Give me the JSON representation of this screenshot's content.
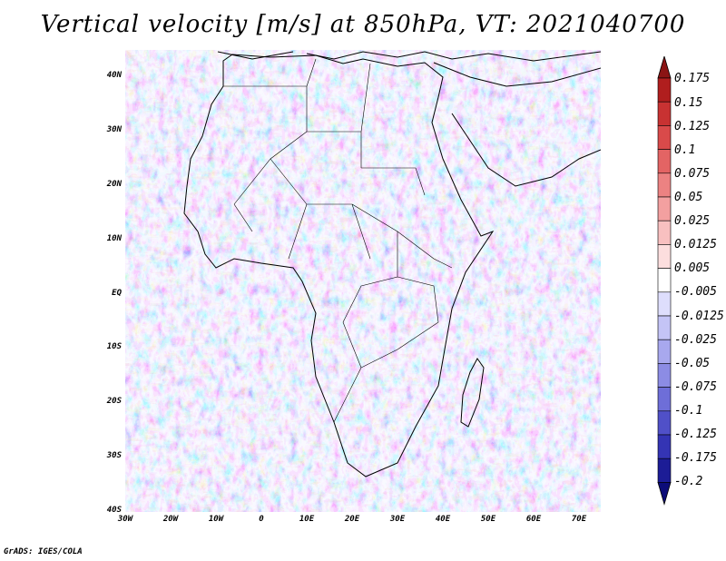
{
  "title": "Vertical velocity [m/s] at 850hPa, VT: 2021040700",
  "credit": "GrADS: IGES/COLA",
  "map": {
    "region": "Africa",
    "variable": "vertical velocity",
    "lat_labels": [
      "40N",
      "30N",
      "20N",
      "10N",
      "EQ",
      "10S",
      "20S",
      "30S",
      "40S"
    ],
    "lon_labels": [
      "30W",
      "20W",
      "10W",
      "0",
      "10E",
      "20E",
      "30E",
      "40E",
      "50E",
      "60E",
      "70E"
    ],
    "lat_range": [
      -40,
      45
    ],
    "lon_range": [
      -30,
      75
    ]
  },
  "colorbar": {
    "labels": [
      "0.175",
      "0.15",
      "0.125",
      "0.1",
      "0.075",
      "0.05",
      "0.025",
      "0.0125",
      "0.005",
      "-0.005",
      "-0.0125",
      "-0.025",
      "-0.05",
      "-0.075",
      "-0.1",
      "-0.125",
      "-0.175",
      "-0.2"
    ],
    "colors": [
      "#8b1414",
      "#b01e1e",
      "#c83232",
      "#d94a4a",
      "#e36464",
      "#ec8282",
      "#f3a0a0",
      "#f8c0c0",
      "#fcdede",
      "#ffffff",
      "#dedefc",
      "#c4c4f6",
      "#a8a8ee",
      "#8c8ce4",
      "#6e6ed8",
      "#5050c8",
      "#3434b4",
      "#1c1c96",
      "#0c0c78"
    ]
  }
}
